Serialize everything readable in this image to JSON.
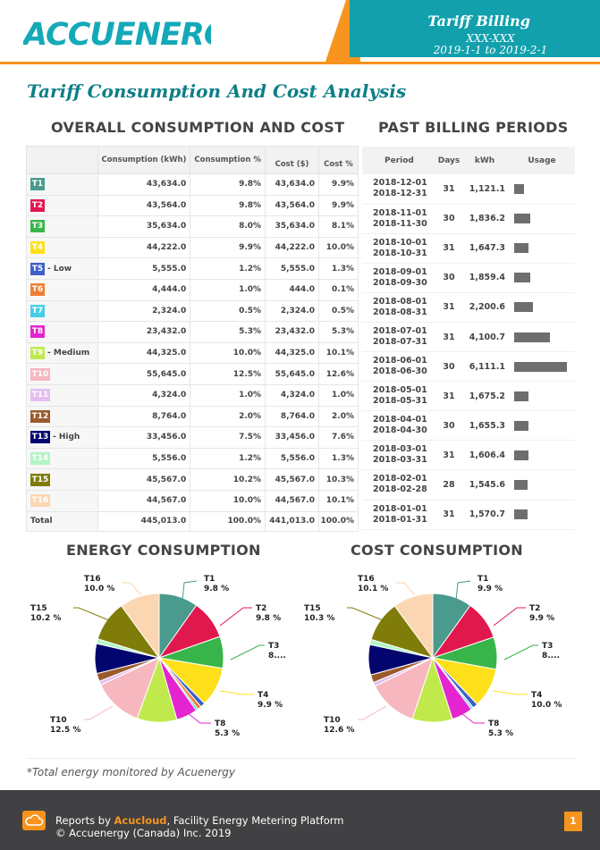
{
  "header": {
    "logo_text": "ACCUENERGY",
    "report_title": "Tariff Billing",
    "meter_id": "XXX-XXX",
    "date_range": "2019-1-1 to 2019-2-1"
  },
  "page_title": "Tariff Consumption And Cost Analysis",
  "overall": {
    "title": "OVERALL CONSUMPTION AND COST",
    "headers": [
      "",
      "Consumption (kWh)",
      "Consumption %",
      "Cost ($)",
      "Cost %"
    ],
    "rows": [
      {
        "tariff": "T1",
        "suffix": "",
        "color": "#4a9a8e",
        "kwh": "43,634.0",
        "kwh_pct": "9.8%",
        "cost": "43,634.0",
        "cost_pct": "9.9%"
      },
      {
        "tariff": "T2",
        "suffix": "",
        "color": "#e0184d",
        "kwh": "43,564.0",
        "kwh_pct": "9.8%",
        "cost": "43,564.0",
        "cost_pct": "9.9%"
      },
      {
        "tariff": "T3",
        "suffix": "",
        "color": "#38b54a",
        "kwh": "35,634.0",
        "kwh_pct": "8.0%",
        "cost": "35,634.0",
        "cost_pct": "8.1%"
      },
      {
        "tariff": "T4",
        "suffix": "",
        "color": "#fde01a",
        "kwh": "44,222.0",
        "kwh_pct": "9.9%",
        "cost": "44,222.0",
        "cost_pct": "10.0%"
      },
      {
        "tariff": "T5",
        "suffix": "- Low",
        "color": "#3e5fc9",
        "kwh": "5,555.0",
        "kwh_pct": "1.2%",
        "cost": "5,555.0",
        "cost_pct": "1.3%"
      },
      {
        "tariff": "T6",
        "suffix": "",
        "color": "#f07f34",
        "kwh": "4,444.0",
        "kwh_pct": "1.0%",
        "cost": "444.0",
        "cost_pct": "0.1%"
      },
      {
        "tariff": "T7",
        "suffix": "",
        "color": "#45cfea",
        "kwh": "2,324.0",
        "kwh_pct": "0.5%",
        "cost": "2,324.0",
        "cost_pct": "0.5%"
      },
      {
        "tariff": "T8",
        "suffix": "",
        "color": "#e324cf",
        "kwh": "23,432.0",
        "kwh_pct": "5.3%",
        "cost": "23,432.0",
        "cost_pct": "5.3%"
      },
      {
        "tariff": "T9",
        "suffix": "- Medium",
        "color": "#c0ea4c",
        "kwh": "44,325.0",
        "kwh_pct": "10.0%",
        "cost": "44,325.0",
        "cost_pct": "10.1%"
      },
      {
        "tariff": "T10",
        "suffix": "",
        "color": "#f7b7be",
        "kwh": "55,645.0",
        "kwh_pct": "12.5%",
        "cost": "55,645.0",
        "cost_pct": "12.6%"
      },
      {
        "tariff": "T11",
        "suffix": "",
        "color": "#e4bff0",
        "kwh": "4,324.0",
        "kwh_pct": "1.0%",
        "cost": "4,324.0",
        "cost_pct": "1.0%"
      },
      {
        "tariff": "T12",
        "suffix": "",
        "color": "#9a5b2c",
        "kwh": "8,764.0",
        "kwh_pct": "2.0%",
        "cost": "8,764.0",
        "cost_pct": "2.0%"
      },
      {
        "tariff": "T13",
        "suffix": "- High",
        "color": "#03056f",
        "kwh": "33,456.0",
        "kwh_pct": "7.5%",
        "cost": "33,456.0",
        "cost_pct": "7.6%"
      },
      {
        "tariff": "T14",
        "suffix": "",
        "color": "#b3f4c6",
        "kwh": "5,556.0",
        "kwh_pct": "1.2%",
        "cost": "5,556.0",
        "cost_pct": "1.3%"
      },
      {
        "tariff": "T15",
        "suffix": "",
        "color": "#7f7c09",
        "kwh": "45,567.0",
        "kwh_pct": "10.2%",
        "cost": "45,567.0",
        "cost_pct": "10.3%"
      },
      {
        "tariff": "T16",
        "suffix": "",
        "color": "#fad7b2",
        "kwh": "44,567.0",
        "kwh_pct": "10.0%",
        "cost": "44,567.0",
        "cost_pct": "10.1%"
      }
    ],
    "total": {
      "label": "Total",
      "kwh": "445,013.0",
      "kwh_pct": "100.0%",
      "cost": "441,013.0",
      "cost_pct": "100.0%"
    }
  },
  "billing": {
    "title": "PAST BILLING PERIODS",
    "headers": [
      "Period",
      "Days",
      "kWh",
      "Usage"
    ],
    "bar_color": "#6d6e70",
    "rows": [
      {
        "start": "2018-12-01",
        "end": "2018-12-31",
        "days": "31",
        "kwh": "1,121.1",
        "usage": 1121.1
      },
      {
        "start": "2018-11-01",
        "end": "2018-11-30",
        "days": "30",
        "kwh": "1,836.2",
        "usage": 1836.2
      },
      {
        "start": "2018-10-01",
        "end": "2018-10-31",
        "days": "31",
        "kwh": "1,647.3",
        "usage": 1647.3
      },
      {
        "start": "2018-09-01",
        "end": "2018-09-30",
        "days": "30",
        "kwh": "1,859.4",
        "usage": 1859.4
      },
      {
        "start": "2018-08-01",
        "end": "2018-08-31",
        "days": "31",
        "kwh": "2,200.6",
        "usage": 2200.6
      },
      {
        "start": "2018-07-01",
        "end": "2018-07-31",
        "days": "31",
        "kwh": "4,100.7",
        "usage": 4100.7
      },
      {
        "start": "2018-06-01",
        "end": "2018-06-30",
        "days": "30",
        "kwh": "6,111.1",
        "usage": 6111.1
      },
      {
        "start": "2018-05-01",
        "end": "2018-05-31",
        "days": "31",
        "kwh": "1,675.2",
        "usage": 1675.2
      },
      {
        "start": "2018-04-01",
        "end": "2018-04-30",
        "days": "30",
        "kwh": "1,655.3",
        "usage": 1655.3
      },
      {
        "start": "2018-03-01",
        "end": "2018-03-31",
        "days": "31",
        "kwh": "1,606.4",
        "usage": 1606.4
      },
      {
        "start": "2018-02-01",
        "end": "2018-02-28",
        "days": "28",
        "kwh": "1,545.6",
        "usage": 1545.6
      },
      {
        "start": "2018-01-01",
        "end": "2018-01-31",
        "days": "31",
        "kwh": "1,570.7",
        "usage": 1570.7
      }
    ]
  },
  "chart_data": [
    {
      "type": "pie",
      "title": "ENERGY CONSUMPTION",
      "categories": [
        "T1",
        "T2",
        "T3",
        "T4",
        "T5",
        "T6",
        "T7",
        "T8",
        "T9",
        "T10",
        "T11",
        "T12",
        "T13",
        "T14",
        "T15",
        "T16"
      ],
      "values": [
        9.8,
        9.8,
        8.0,
        9.9,
        1.2,
        1.0,
        0.5,
        5.3,
        10.0,
        12.5,
        1.0,
        2.0,
        7.5,
        1.2,
        10.2,
        10.0
      ],
      "colors": [
        "#4a9a8e",
        "#e0184d",
        "#38b54a",
        "#fde01a",
        "#3e5fc9",
        "#f07f34",
        "#45cfea",
        "#e324cf",
        "#c0ea4c",
        "#f7b7be",
        "#e4bff0",
        "#9a5b2c",
        "#03056f",
        "#b3f4c6",
        "#7f7c09",
        "#fad7b2"
      ],
      "labels": [
        {
          "name": "T1",
          "value": "9.8 %"
        },
        {
          "name": "T2",
          "value": "9.8 %"
        },
        {
          "name": "T3",
          "value": "8...."
        },
        {
          "name": "T4",
          "value": "9.9 %"
        },
        {
          "name": "T8",
          "value": "5.3 %"
        },
        {
          "name": "T10",
          "value": "12.5 %"
        },
        {
          "name": "T15",
          "value": "10.2 %"
        },
        {
          "name": "T16",
          "value": "10.0 %"
        }
      ]
    },
    {
      "type": "pie",
      "title": "COST CONSUMPTION",
      "categories": [
        "T1",
        "T2",
        "T3",
        "T4",
        "T5",
        "T6",
        "T7",
        "T8",
        "T9",
        "T10",
        "T11",
        "T12",
        "T13",
        "T14",
        "T15",
        "T16"
      ],
      "values": [
        9.9,
        9.9,
        8.1,
        10.0,
        1.3,
        0.1,
        0.5,
        5.3,
        10.1,
        12.6,
        1.0,
        2.0,
        7.6,
        1.3,
        10.3,
        10.1
      ],
      "colors": [
        "#4a9a8e",
        "#e0184d",
        "#38b54a",
        "#fde01a",
        "#3e5fc9",
        "#f07f34",
        "#45cfea",
        "#e324cf",
        "#c0ea4c",
        "#f7b7be",
        "#e4bff0",
        "#9a5b2c",
        "#03056f",
        "#b3f4c6",
        "#7f7c09",
        "#fad7b2"
      ],
      "labels": [
        {
          "name": "T1",
          "value": "9.9 %"
        },
        {
          "name": "T2",
          "value": "9.9 %"
        },
        {
          "name": "T3",
          "value": "8...."
        },
        {
          "name": "T4",
          "value": "10.0 %"
        },
        {
          "name": "T8",
          "value": "5.3 %"
        },
        {
          "name": "T10",
          "value": "12.6 %"
        },
        {
          "name": "T15",
          "value": "10.3 %"
        },
        {
          "name": "T16",
          "value": "10.1 %"
        }
      ]
    }
  ],
  "footnote": "*Total energy monitored by Acuenergy",
  "footer": {
    "line1_prefix": "Reports by ",
    "brand": "Acucloud",
    "line1_suffix": ", Facility Energy Metering Platform",
    "line2": "© Accuenergy (Canada) Inc. 2019",
    "page_number": "1",
    "accent": "#f7941d"
  }
}
